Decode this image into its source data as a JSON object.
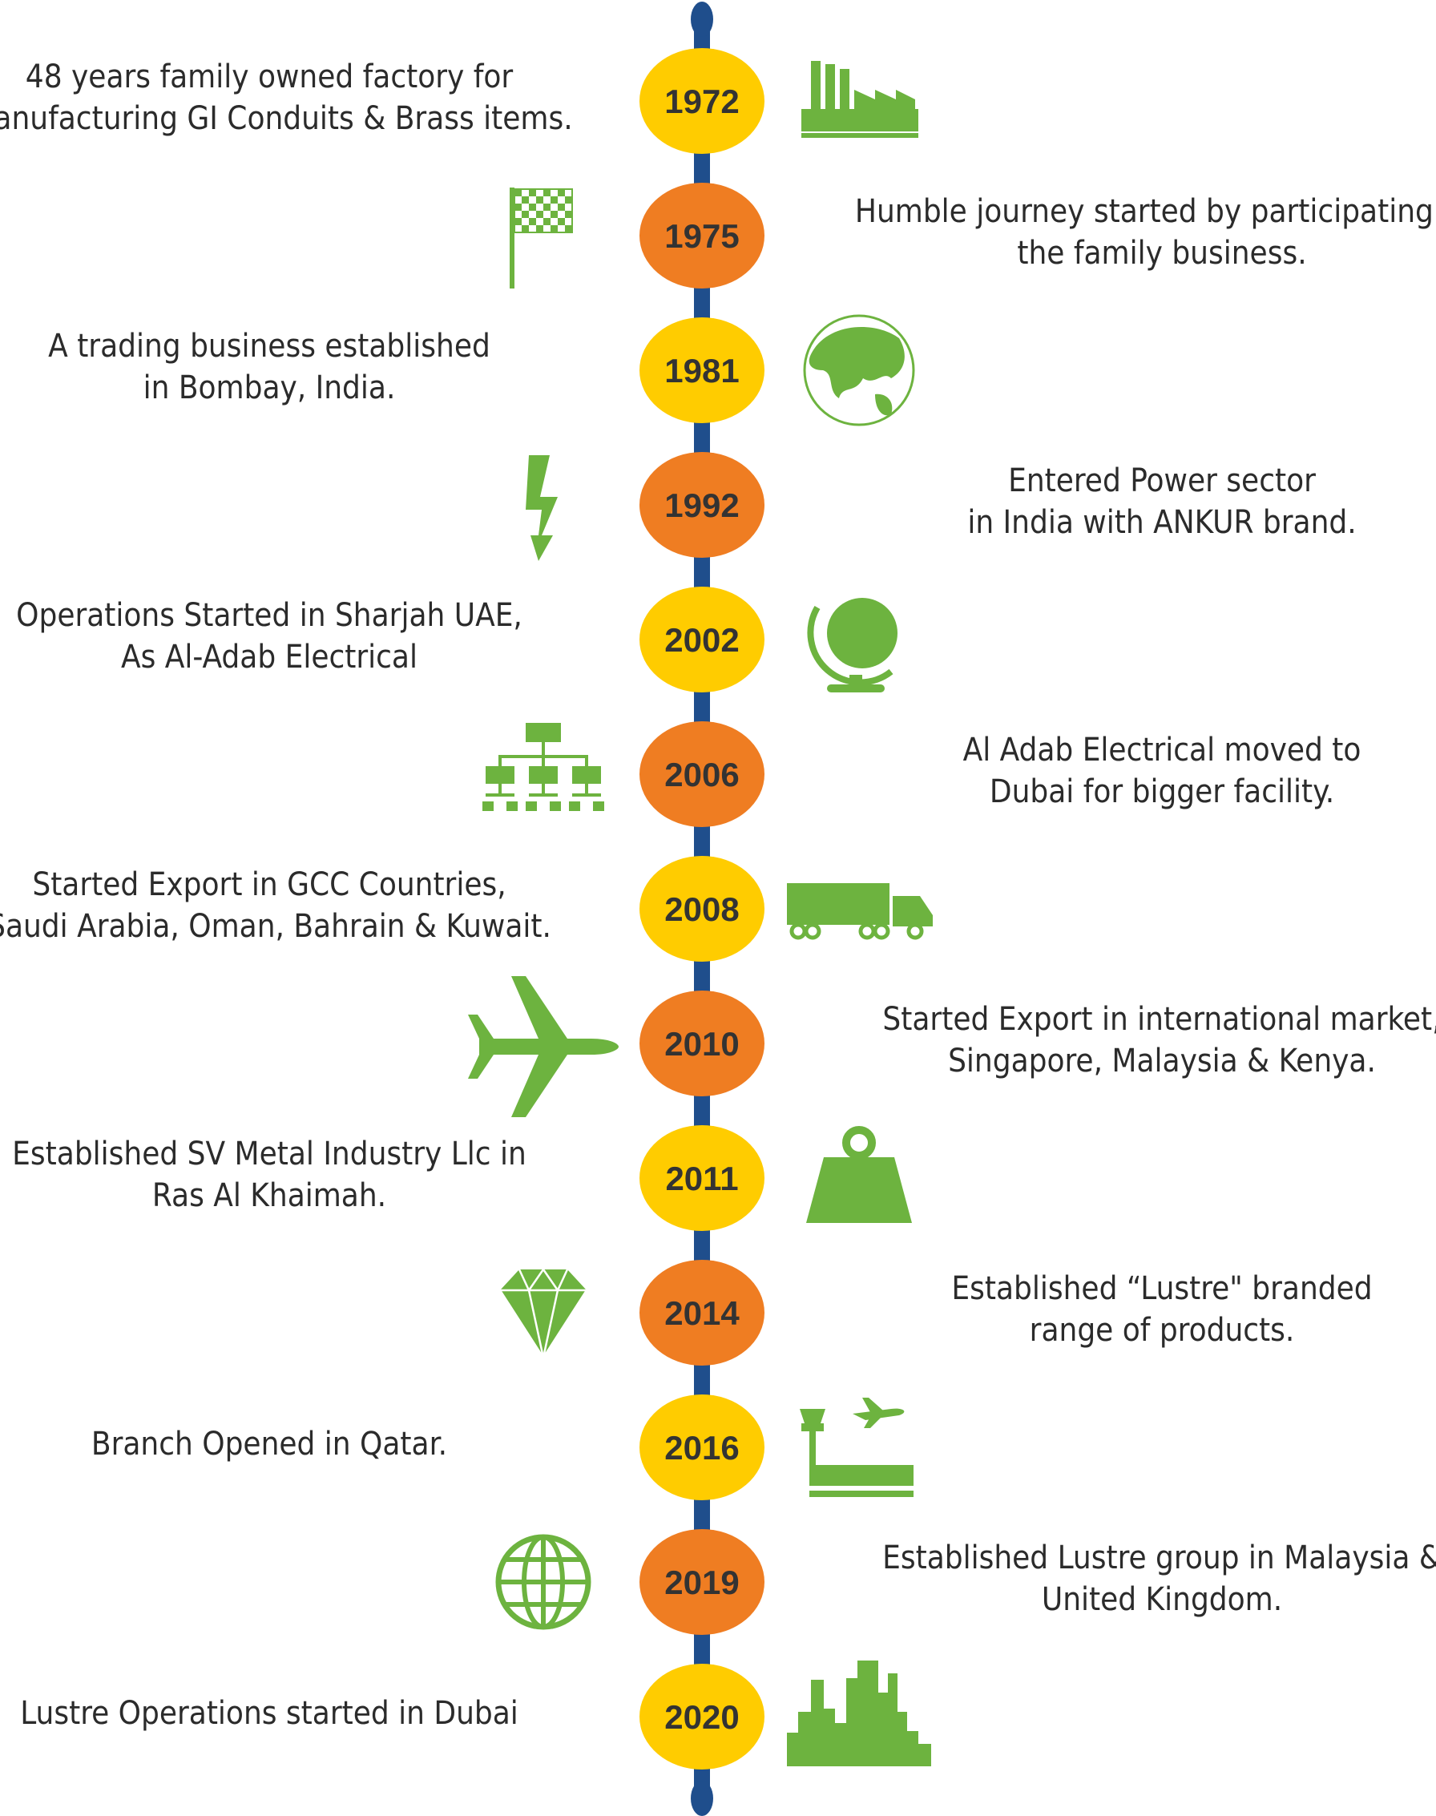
{
  "colors": {
    "line": "#1f4e8c",
    "yellow": "#ffcc00",
    "orange": "#ef7d22",
    "icon_green": "#6db33f",
    "text": "#2b2b2b"
  },
  "events": [
    {
      "year": "1972",
      "color": "yellow",
      "side": "left",
      "lines": [
        "48 years family owned factory for",
        "manufacturing GI Conduits & Brass items."
      ],
      "icon": "factory-icon"
    },
    {
      "year": "1975",
      "color": "orange",
      "side": "right",
      "lines": [
        "Humble journey started by participating in",
        "the family business."
      ],
      "icon": "checkered-flag-icon"
    },
    {
      "year": "1981",
      "color": "yellow",
      "side": "left",
      "lines": [
        "A trading business established",
        "in Bombay, India."
      ],
      "icon": "world-asia-icon"
    },
    {
      "year": "1992",
      "color": "orange",
      "side": "right",
      "lines": [
        "Entered Power sector",
        "in India with ANKUR brand."
      ],
      "icon": "lightning-bolt-icon"
    },
    {
      "year": "2002",
      "color": "yellow",
      "side": "left",
      "lines": [
        "Operations Started in Sharjah UAE,",
        "As Al-Adab Electrical"
      ],
      "icon": "desk-globe-icon"
    },
    {
      "year": "2006",
      "color": "orange",
      "side": "right",
      "lines": [
        "Al Adab Electrical moved to",
        "Dubai for bigger facility."
      ],
      "icon": "org-chart-icon"
    },
    {
      "year": "2008",
      "color": "yellow",
      "side": "left",
      "lines": [
        "Started Export in GCC Countries,",
        "Saudi Arabia, Oman, Bahrain & Kuwait."
      ],
      "icon": "truck-icon"
    },
    {
      "year": "2010",
      "color": "orange",
      "side": "right",
      "lines": [
        "Started Export in international market,",
        "Singapore, Malaysia & Kenya."
      ],
      "icon": "airplane-icon"
    },
    {
      "year": "2011",
      "color": "yellow",
      "side": "left",
      "lines": [
        "Established SV  Metal Industry Llc in",
        "Ras Al Khaimah."
      ],
      "icon": "weight-icon"
    },
    {
      "year": "2014",
      "color": "orange",
      "side": "right",
      "lines": [
        "Established “Lustre\" branded",
        "range of products."
      ],
      "icon": "diamond-icon"
    },
    {
      "year": "2016",
      "color": "yellow",
      "side": "left",
      "lines": [
        "Branch Opened in Qatar."
      ],
      "icon": "airport-icon"
    },
    {
      "year": "2019",
      "color": "orange",
      "side": "right",
      "lines": [
        "Established Lustre group in Malaysia &",
        "United Kingdom."
      ],
      "icon": "globe-grid-icon"
    },
    {
      "year": "2020",
      "color": "yellow",
      "side": "left",
      "lines": [
        "Lustre Operations started in Dubai"
      ],
      "icon": "city-skyline-icon"
    }
  ]
}
